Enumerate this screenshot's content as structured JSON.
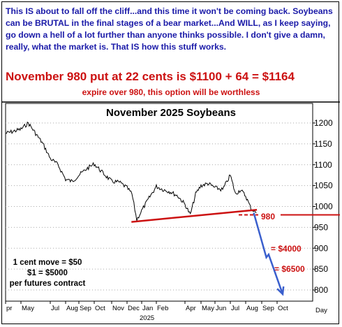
{
  "commentary": {
    "intro": "This IS about to fall off the cliff...and this time it won't be coming back. Soybeans can be BRUTAL in the final stages of a bear market...And WILL, as I keep saying, go down a hell of a lot further than anyone thinks possible. I don't give a damn, really, what the market is. That IS how this stuff works.",
    "headline": "November 980 put at 22 cents is $1100 + 64 = $1164",
    "subline": "expire over 980, this option will be worthless"
  },
  "colors": {
    "text_blue": "#1a1aa8",
    "red": "#cc1111",
    "arrow_blue": "#3a5fcd",
    "price_line": "#000000"
  },
  "chart_data": {
    "type": "line",
    "title": "November 2025 Soybeans",
    "xlabel": "",
    "ylabel": "",
    "x_axis_year": "2025",
    "x_unit_label": "Day",
    "x_ticks": [
      "pr",
      "May",
      "Jul",
      "Aug",
      "Sep",
      "Oct",
      "Nov",
      "Dec",
      "Jan",
      "Feb",
      "Apr",
      "May",
      "Jun",
      "Jul",
      "Aug",
      "Sep",
      "Oct"
    ],
    "ylim": [
      780,
      1230
    ],
    "y_ticks": [
      1200,
      1150,
      1100,
      1050,
      1000,
      950,
      900,
      850,
      800
    ],
    "series": [
      {
        "values": [
          [
            "Apr 2024",
            1175
          ],
          [
            "May 2024",
            1185
          ],
          [
            "May 2024",
            1200
          ],
          [
            "Jun 2024",
            1175
          ],
          [
            "Jun 2024",
            1150
          ],
          [
            "Jul 2024",
            1115
          ],
          [
            "Jul 2024",
            1100
          ],
          [
            "Aug 2024",
            1065
          ],
          [
            "Aug 2024",
            1060
          ],
          [
            "Sep 2024",
            1075
          ],
          [
            "Sep 2024",
            1090
          ],
          [
            "Oct 2024",
            1102
          ],
          [
            "Oct 2024",
            1080
          ],
          [
            "Nov 2024",
            1060
          ],
          [
            "Nov 2024",
            1058
          ],
          [
            "Dec 2024",
            1045
          ],
          [
            "Dec 2024",
            1030
          ],
          [
            "Dec 2024",
            968
          ],
          [
            "Jan 2025",
            990
          ],
          [
            "Jan 2025",
            1020
          ],
          [
            "Feb 2025",
            1048
          ],
          [
            "Feb 2025",
            1040
          ],
          [
            "Mar 2025",
            1035
          ],
          [
            "Mar 2025",
            1025
          ],
          [
            "Apr 2025",
            1005
          ],
          [
            "Apr 2025",
            980
          ],
          [
            "Apr 2025",
            1030
          ],
          [
            "May 2025",
            1050
          ],
          [
            "May 2025",
            1055
          ],
          [
            "Jun 2025",
            1045
          ],
          [
            "Jun 2025",
            1040
          ],
          [
            "Jul 2025",
            1075
          ],
          [
            "Jul 2025",
            1030
          ],
          [
            "Jul 2025",
            1040
          ],
          [
            "Aug 2025",
            1025
          ],
          [
            "Aug 2025",
            995
          ],
          [
            "Aug 2025",
            985
          ]
        ]
      }
    ],
    "support_line": {
      "from": [
        "Dec 2024",
        963
      ],
      "to": [
        "Aug 2025",
        992
      ]
    },
    "strike_level": {
      "value": 980,
      "label": "980"
    },
    "projection_arrow": [
      [
        "Aug 2025",
        985
      ],
      [
        "Sep 2025",
        878
      ],
      [
        "Sep 2025",
        885
      ],
      [
        "Oct 2025",
        790
      ]
    ],
    "annotations": {
      "level_4000": "= $4000",
      "level_6500": "= $6500",
      "note_line1": "1 cent move = $50",
      "note_line2": "$1 = $5000",
      "note_line3": "per futures contract"
    }
  }
}
